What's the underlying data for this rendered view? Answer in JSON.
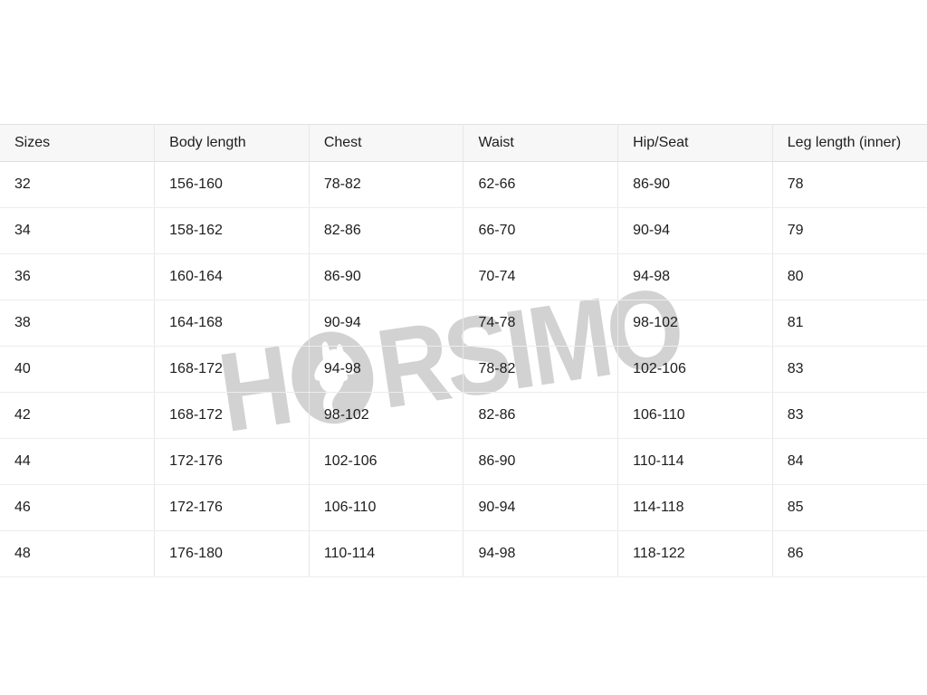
{
  "table": {
    "columns": [
      "Sizes",
      "Body length",
      "Chest",
      "Waist",
      "Hip/Seat",
      "Leg length (inner)"
    ],
    "rows": [
      [
        "32",
        "156-160",
        "78-82",
        "62-66",
        "86-90",
        "78"
      ],
      [
        "34",
        "158-162",
        "82-86",
        "66-70",
        "90-94",
        "79"
      ],
      [
        "36",
        "160-164",
        "86-90",
        "70-74",
        "94-98",
        "80"
      ],
      [
        "38",
        "164-168",
        "90-94",
        "74-78",
        "98-102",
        "81"
      ],
      [
        "40",
        "168-172",
        "94-98",
        "78-82",
        "102-106",
        "83"
      ],
      [
        "42",
        "168-172",
        "98-102",
        "82-86",
        "106-110",
        "83"
      ],
      [
        "44",
        "172-176",
        "102-106",
        "86-90",
        "110-114",
        "84"
      ],
      [
        "46",
        "172-176",
        "106-110",
        "90-94",
        "114-118",
        "85"
      ],
      [
        "48",
        "176-180",
        "110-114",
        "94-98",
        "118-122",
        "86"
      ]
    ]
  },
  "watermark": {
    "part1": "H",
    "part2": "RSIMO",
    "color": "#d2d2d2"
  },
  "colors": {
    "header_bg": "#f7f7f7",
    "header_border": "#e0e0e0",
    "row_border": "#ededed",
    "column_border": "#e7e7e7",
    "text": "#1d1d1f",
    "watermark": "#d2d2d2"
  }
}
